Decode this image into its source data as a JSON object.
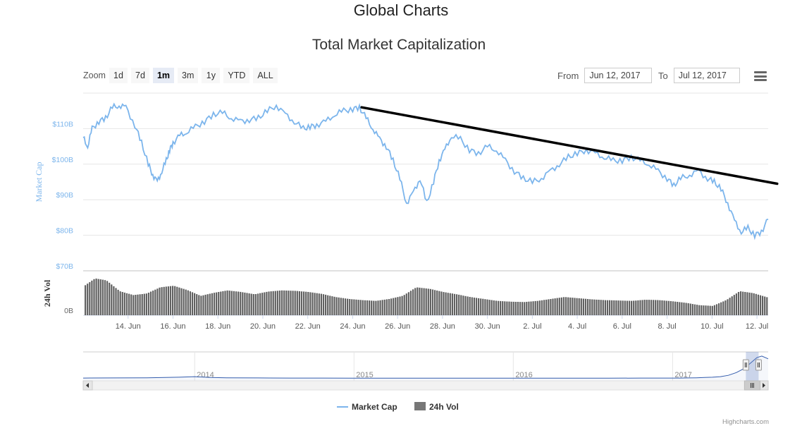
{
  "page": {
    "title": "Global Charts"
  },
  "toolbar": {
    "zoom_label": "Zoom",
    "zoom_options": [
      "1d",
      "7d",
      "1m",
      "3m",
      "1y",
      "YTD",
      "ALL"
    ],
    "active_zoom": "1m",
    "from_label": "From",
    "from_value": "Jun 12, 2017",
    "to_label": "To",
    "to_value": "Jul 12, 2017",
    "menu_icon": "hamburger-menu-icon"
  },
  "chart_data": {
    "type": "line",
    "title": "Total Market Capitalization",
    "colors": {
      "market_cap": "#7cb5ec",
      "volume": "#606060",
      "trendline": "#000000",
      "navigator": "#335cad"
    },
    "series": [
      {
        "name": "Market Cap",
        "unit": "USD billions",
        "x": [
          12.0,
          12.2,
          12.4,
          12.7,
          13.0,
          13.3,
          13.6,
          13.9,
          14.3,
          14.6,
          14.9,
          15.1,
          15.3,
          15.5,
          15.7,
          15.85,
          16.0,
          16.3,
          16.6,
          17.0,
          17.4,
          17.8,
          18.2,
          18.6,
          19.0,
          19.4,
          19.8,
          20.2,
          20.6,
          21.0,
          21.4,
          21.8,
          22.1,
          22.4,
          22.8,
          23.2,
          23.6,
          24.0,
          24.3,
          24.6,
          24.9,
          25.2,
          25.5,
          25.8,
          26.1,
          26.4,
          26.7,
          27.0,
          27.3,
          27.6,
          27.85,
          28.1,
          28.4,
          28.8,
          29.2,
          29.6,
          30.0,
          30.4,
          30.8,
          31.2,
          31.6,
          32.0,
          32.4,
          32.8,
          33.2,
          33.6,
          34.0,
          34.4,
          34.8,
          35.2,
          35.6,
          36.0,
          36.4,
          36.8,
          37.2,
          37.6,
          38.0,
          38.3,
          38.6,
          39.0,
          39.4,
          39.8,
          40.1,
          40.4,
          40.7,
          41.0,
          41.3,
          41.6,
          41.9,
          42.2,
          42.5
        ],
        "y": [
          107.5,
          105,
          110,
          112,
          113,
          116,
          116.5,
          116,
          111,
          106,
          100,
          97,
          95,
          98,
          101,
          104,
          106,
          108,
          109,
          110.5,
          112,
          114,
          114.5,
          113,
          112,
          112.5,
          113,
          115,
          116.5,
          114,
          112,
          110,
          110.5,
          111,
          112,
          114,
          115,
          115.5,
          116,
          113,
          110,
          107,
          105,
          101,
          96,
          89,
          92,
          96,
          89,
          95,
          101,
          104,
          108,
          107,
          104,
          103,
          105,
          104,
          101,
          98,
          96,
          95,
          96,
          98,
          100,
          102,
          103,
          104,
          103,
          102,
          101,
          101,
          102,
          101,
          100,
          98,
          96,
          94,
          96,
          97,
          98,
          96,
          95,
          93,
          89,
          84,
          81,
          82,
          80,
          81,
          84.5
        ]
      },
      {
        "name": "24h Vol",
        "unit": "USD billions (relative)",
        "x": [
          12.0,
          12.5,
          13.0,
          13.6,
          14.2,
          14.8,
          15.4,
          16.0,
          16.6,
          17.2,
          17.8,
          18.4,
          19.0,
          19.6,
          20.2,
          20.8,
          21.4,
          22.0,
          22.6,
          23.2,
          23.8,
          24.4,
          25.0,
          25.6,
          26.2,
          26.8,
          27.4,
          28.0,
          28.6,
          29.2,
          29.8,
          30.4,
          31.0,
          31.6,
          32.2,
          32.8,
          33.4,
          34.0,
          34.6,
          35.2,
          35.8,
          36.4,
          37.0,
          37.6,
          38.2,
          38.8,
          39.4,
          40.0,
          40.6,
          41.2,
          41.8,
          42.5
        ],
        "y": [
          7.5,
          9.5,
          9,
          6.2,
          5.2,
          5.6,
          7.2,
          7.6,
          6.5,
          5.0,
          5.8,
          6.4,
          6.0,
          5.4,
          6.1,
          6.4,
          6.3,
          6.0,
          5.5,
          4.7,
          4.2,
          3.9,
          3.7,
          4.2,
          5.0,
          7.2,
          6.8,
          6.0,
          5.4,
          4.7,
          4.2,
          3.7,
          3.5,
          3.4,
          3.7,
          4.2,
          4.7,
          4.4,
          4.1,
          3.9,
          3.8,
          3.7,
          4.0,
          3.9,
          3.6,
          3.2,
          2.6,
          2.4,
          3.9,
          6.2,
          5.7,
          4.5
        ]
      }
    ],
    "x_axis": {
      "ticks": [
        "14. Jun",
        "16. Jun",
        "18. Jun",
        "20. Jun",
        "22. Jun",
        "24. Jun",
        "26. Jun",
        "28. Jun",
        "30. Jun",
        "2. Jul",
        "4. Jul",
        "6. Jul",
        "8. Jul",
        "10. Jul",
        "12. Jul"
      ],
      "tick_days": [
        14,
        16,
        18,
        20,
        22,
        24,
        26,
        28,
        30,
        32,
        34,
        36,
        38,
        40,
        42
      ],
      "range_days": [
        12.0,
        42.5
      ]
    },
    "y_axis_marketcap": {
      "label": "Market Cap",
      "ticks": [
        "$110B",
        "$100B",
        "$90B",
        "$80B",
        "$70B"
      ],
      "tick_values": [
        110,
        100,
        90,
        80,
        70
      ],
      "range": [
        70,
        120
      ]
    },
    "y_axis_volume": {
      "label": "24h Vol",
      "ticks": [
        "0B"
      ]
    },
    "trendline": {
      "from": {
        "x": 24.4,
        "y": 116
      },
      "to": {
        "x": 42.9,
        "y": 94.5
      }
    },
    "navigator": {
      "labels": [
        "2014",
        "2015",
        "2016",
        "2017"
      ],
      "label_years": [
        2014,
        2015,
        2016,
        2017
      ],
      "year_range": [
        2013.3,
        2017.6
      ],
      "values": [
        1.0,
        1.05,
        1.1,
        1.3,
        1.5,
        1.2,
        1.1,
        1.05,
        1.0,
        1.0,
        0.95,
        0.95,
        0.95,
        0.95,
        0.95,
        0.95,
        0.95,
        0.95,
        0.95,
        1.0,
        1.0,
        1.0,
        1.0,
        1.05,
        1.1,
        1.2,
        1.3,
        1.5,
        2.0,
        3.0,
        4.5,
        7.0,
        8.5,
        9.0,
        8.0
      ],
      "value_years": [
        2013.3,
        2013.5,
        2013.7,
        2013.9,
        2014.0,
        2014.1,
        2014.2,
        2014.4,
        2014.6,
        2014.8,
        2015.0,
        2015.2,
        2015.4,
        2015.6,
        2015.8,
        2016.0,
        2016.2,
        2016.4,
        2016.6,
        2016.8,
        2016.9,
        2017.0,
        2017.05,
        2017.1,
        2017.15,
        2017.2,
        2017.25,
        2017.3,
        2017.35,
        2017.4,
        2017.45,
        2017.5,
        2017.53,
        2017.56,
        2017.6
      ],
      "value_max": 10,
      "selected_years": [
        2017.46,
        2017.54
      ]
    },
    "legend": {
      "items": [
        "Market Cap",
        "24h Vol"
      ],
      "position": "bottom"
    },
    "credits": "Highcharts.com"
  }
}
